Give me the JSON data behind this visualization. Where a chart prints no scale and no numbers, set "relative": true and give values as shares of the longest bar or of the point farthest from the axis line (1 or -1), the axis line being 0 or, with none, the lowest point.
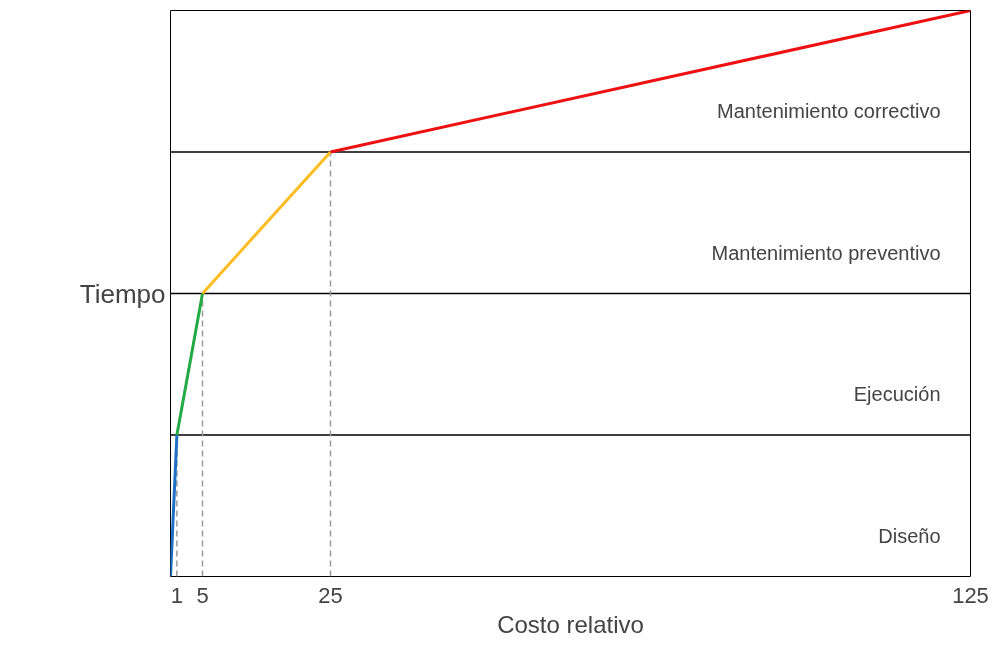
{
  "chart_data": {
    "type": "line",
    "xlabel": "Costo relativo",
    "ylabel": "Tiempo",
    "relative": true,
    "xlim": [
      0,
      125
    ],
    "xticks": [
      1,
      5,
      25,
      125
    ],
    "series": [
      {
        "color": "#1f6fc5",
        "x": [
          0,
          1
        ],
        "values": [
          0,
          0.25
        ]
      },
      {
        "color": "#22aa44",
        "x": [
          1,
          5
        ],
        "values": [
          0.25,
          0.5
        ]
      },
      {
        "color": "#ffbb22",
        "x": [
          5,
          25
        ],
        "values": [
          0.5,
          0.75
        ]
      },
      {
        "color": "#ee1111",
        "x": [
          25,
          125
        ],
        "values": [
          0.75,
          1
        ]
      }
    ],
    "annotations": [
      "Diseño",
      "Ejecución",
      "Mantenimiento preventivo",
      "Mantenimiento correctivo"
    ],
    "ref_lines": [
      {
        "axis": "y",
        "value": 0.25,
        "color": "#000000",
        "line_style": "solid"
      },
      {
        "axis": "y",
        "value": 0.5,
        "color": "#000000",
        "line_style": "solid"
      },
      {
        "axis": "y",
        "value": 0.75,
        "color": "#000000",
        "line_style": "solid"
      },
      {
        "axis": "x",
        "value": 1,
        "color": "#999999",
        "line_style": "dashed"
      },
      {
        "axis": "x",
        "value": 5,
        "color": "#999999",
        "line_style": "dashed"
      },
      {
        "axis": "x",
        "value": 25,
        "color": "#999999",
        "line_style": "dashed"
      }
    ],
    "grid": false,
    "marker": "none",
    "line_style": "solid"
  }
}
